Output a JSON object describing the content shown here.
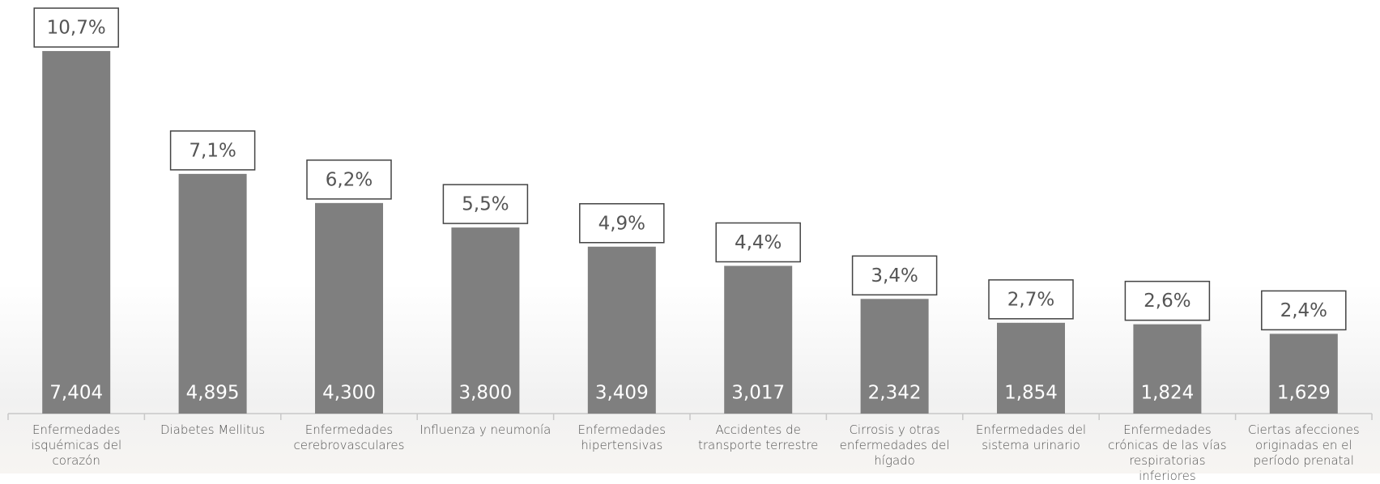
{
  "chart_data": {
    "type": "bar",
    "categories": [
      "Enfermedades isquémicas del corazón",
      "Diabetes Mellitus",
      "Enfermedades cerebrovasculares",
      "Influenza y neumonía",
      "Enfermedades hipertensivas",
      "Accidentes de transporte terrestre",
      "Cirrosis y otras enfermedades del hígado",
      "Enfermedades del sistema urinario",
      "Enfermedades crónicas de las vías respiratorias inferiores",
      "Ciertas afecciones originadas en el período prenatal"
    ],
    "values": [
      7404,
      4895,
      4300,
      3800,
      3409,
      3017,
      2342,
      1854,
      1824,
      1629
    ],
    "value_labels": [
      "7,404",
      "4,895",
      "4,300",
      "3,800",
      "3,409",
      "3,017",
      "2,342",
      "1,854",
      "1,824",
      "1,629"
    ],
    "annotations": [
      {
        "value": 10.7,
        "label": "10,7%"
      },
      {
        "value": 7.1,
        "label": "7,1%"
      },
      {
        "value": 6.2,
        "label": "6,2%"
      },
      {
        "value": 5.5,
        "label": "5,5%"
      },
      {
        "value": 4.9,
        "label": "4,9%"
      },
      {
        "value": 4.4,
        "label": "4,4%"
      },
      {
        "value": 3.4,
        "label": "3,4%"
      },
      {
        "value": 2.7,
        "label": "2,7%"
      },
      {
        "value": 2.6,
        "label": "2,6%"
      },
      {
        "value": 2.4,
        "label": "2,4%"
      }
    ],
    "color": "#7f7f7f",
    "ylim": [
      0,
      8000
    ]
  }
}
